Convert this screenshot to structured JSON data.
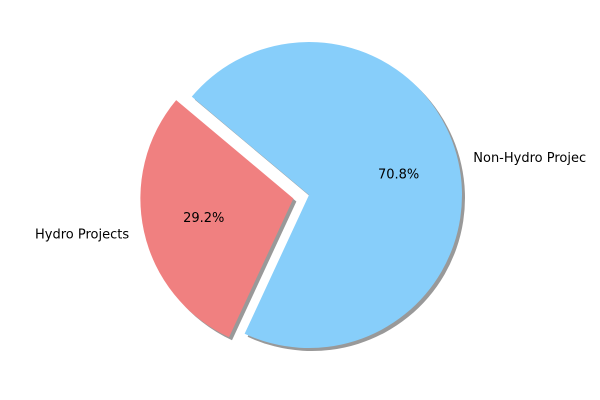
{
  "chart_data": {
    "type": "pie",
    "title": "",
    "labels": [
      "Hydro Projects",
      "Non-Hydro Projec"
    ],
    "values": [
      29.2,
      70.8
    ],
    "percent_labels": [
      "29.2%",
      "70.8%"
    ],
    "colors": [
      "#f08080",
      "#87cefa"
    ],
    "exploded": [
      true,
      false
    ],
    "shadow": true,
    "legend": "none"
  }
}
